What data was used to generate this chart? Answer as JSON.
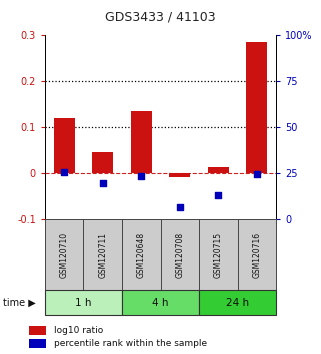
{
  "title": "GDS3433 / 41103",
  "samples": [
    "GSM120710",
    "GSM120711",
    "GSM120648",
    "GSM120708",
    "GSM120715",
    "GSM120716"
  ],
  "log10_ratio": [
    0.12,
    0.047,
    0.135,
    -0.008,
    0.013,
    0.285
  ],
  "percentile_rank_pct": [
    26,
    19.7,
    23.8,
    6.7,
    13.5,
    24.8
  ],
  "groups": [
    {
      "label": "1 h",
      "indices": [
        0,
        1
      ],
      "color": "#bbf0bb"
    },
    {
      "label": "4 h",
      "indices": [
        2,
        3
      ],
      "color": "#66dd66"
    },
    {
      "label": "24 h",
      "indices": [
        4,
        5
      ],
      "color": "#33cc33"
    }
  ],
  "bar_color": "#cc1111",
  "dot_color": "#0000bb",
  "ylim_left": [
    -0.1,
    0.3
  ],
  "ylim_right": [
    0,
    100
  ],
  "yticks_left": [
    -0.1,
    0.0,
    0.1,
    0.2,
    0.3
  ],
  "ytick_labels_left": [
    "-0.1",
    "0",
    "0.1",
    "0.2",
    "0.3"
  ],
  "yticks_right": [
    0,
    25,
    50,
    75,
    100
  ],
  "ytick_labels_right": [
    "0",
    "25",
    "50",
    "75",
    "100%"
  ],
  "hlines_dotted": [
    0.1,
    0.2
  ],
  "hline_zero_color": "#cc2222",
  "hline_dotted_color": "#000000",
  "sample_box_color": "#cccccc",
  "legend_bar_label": "log10 ratio",
  "legend_dot_label": "percentile rank within the sample",
  "bg_color": "#ffffff",
  "fig_width": 3.21,
  "fig_height": 3.54,
  "dpi": 100
}
